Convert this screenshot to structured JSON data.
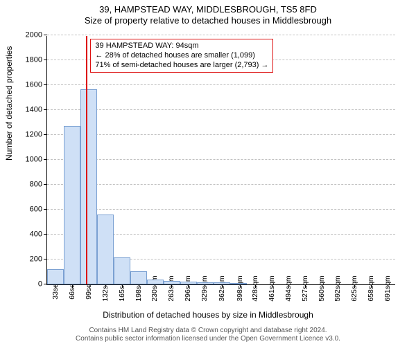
{
  "title_main": "39, HAMPSTEAD WAY, MIDDLESBROUGH, TS5 8FD",
  "title_sub": "Size of property relative to detached houses in Middlesbrough",
  "ylabel": "Number of detached properties",
  "xlabel": "Distribution of detached houses by size in Middlesbrough",
  "footer_line1": "Contains HM Land Registry data © Crown copyright and database right 2024.",
  "footer_line2": "Contains public sector information licensed under the Open Government Licence v3.0.",
  "annotation": {
    "line1": "39 HAMPSTEAD WAY: 94sqm",
    "line2": "← 28% of detached houses are smaller (1,099)",
    "line3": "71% of semi-detached houses are larger (2,793) →"
  },
  "chart": {
    "type": "histogram",
    "ylim": [
      0,
      2000
    ],
    "yticks": [
      0,
      200,
      400,
      600,
      800,
      1000,
      1200,
      1400,
      1600,
      1800,
      2000
    ],
    "xlim": [
      16.5,
      707.5
    ],
    "xticks": [
      33,
      66,
      99,
      132,
      165,
      198,
      230,
      263,
      296,
      329,
      362,
      398,
      428,
      461,
      494,
      527,
      560,
      592,
      625,
      658,
      691
    ],
    "xtick_unit": "sqm",
    "bar_color": "#cfe0f6",
    "bar_border_color": "#7aa0d2",
    "ref_line_color": "#d11",
    "ref_line_x": 94,
    "grid_color": "#999",
    "background_color": "#ffffff",
    "bars": [
      {
        "x0": 16.5,
        "x1": 49.5,
        "y": 125
      },
      {
        "x0": 49.5,
        "x1": 82.5,
        "y": 1270
      },
      {
        "x0": 82.5,
        "x1": 115.5,
        "y": 1565
      },
      {
        "x0": 115.5,
        "x1": 148.5,
        "y": 560
      },
      {
        "x0": 148.5,
        "x1": 181.5,
        "y": 215
      },
      {
        "x0": 181.5,
        "x1": 214.5,
        "y": 105
      },
      {
        "x0": 214.5,
        "x1": 247.5,
        "y": 40
      },
      {
        "x0": 247.5,
        "x1": 280.5,
        "y": 30
      },
      {
        "x0": 280.5,
        "x1": 313.5,
        "y": 20
      },
      {
        "x0": 313.5,
        "x1": 346.5,
        "y": 15
      },
      {
        "x0": 346.5,
        "x1": 379.5,
        "y": 15
      },
      {
        "x0": 379.5,
        "x1": 412.5,
        "y": 10
      }
    ]
  }
}
